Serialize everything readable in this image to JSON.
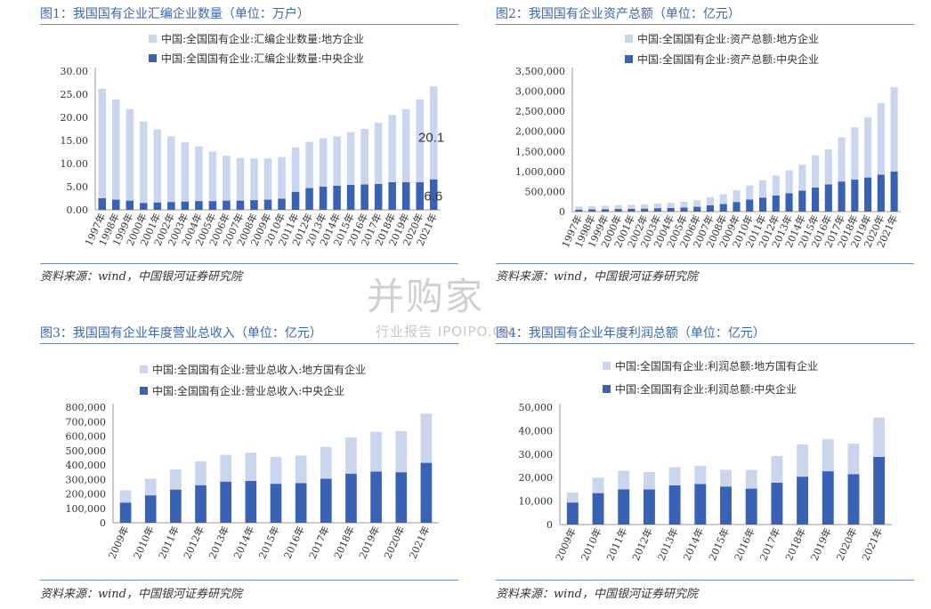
{
  "colors": {
    "local": "#c9d6ee",
    "central": "#3a62b4",
    "title": "#3b66b0",
    "rule": "#6f8cc3"
  },
  "watermark": {
    "main": "并购家",
    "sub": "行业报告 IPOIPO.CN"
  },
  "chart_data": [
    {
      "type": "bar",
      "stacked": true,
      "title": "图1：我国国有企业汇编企业数量（单位：万户）",
      "source": "资料来源：wind，中国银河证券研究院",
      "categories": [
        "1997年",
        "1998年",
        "1999年",
        "2000年",
        "2001年",
        "2002年",
        "2003年",
        "2004年",
        "2005年",
        "2006年",
        "2007年",
        "2008年",
        "2009年",
        "2010年",
        "2011年",
        "2012年",
        "2013年",
        "2014年",
        "2015年",
        "2016年",
        "2017年",
        "2018年",
        "2019年",
        "2020年",
        "2021年"
      ],
      "series": [
        {
          "name": "中国:全国国有企业:汇编企业数量:中央企业",
          "values": [
            2.5,
            2.2,
            2.0,
            1.5,
            1.6,
            1.7,
            1.8,
            1.9,
            1.9,
            2.0,
            2.0,
            2.1,
            2.2,
            2.4,
            3.9,
            4.7,
            5.0,
            5.2,
            5.4,
            5.5,
            5.6,
            6.0,
            6.0,
            6.0,
            6.6
          ]
        },
        {
          "name": "中国:全国国有企业:汇编企业数量:地方企业",
          "values": [
            23.7,
            21.7,
            19.8,
            17.6,
            15.8,
            14.2,
            12.8,
            11.8,
            10.7,
            9.7,
            9.2,
            9.0,
            8.9,
            9.0,
            9.6,
            10.0,
            10.5,
            10.7,
            11.4,
            12.0,
            13.2,
            14.5,
            15.8,
            17.9,
            20.1
          ]
        }
      ],
      "ylim": [
        0,
        30
      ],
      "yticks": [
        "0.00",
        "5.00",
        "10.00",
        "15.00",
        "20.00",
        "25.00",
        "30.00"
      ],
      "annotations": [
        "20.1",
        "6.6"
      ],
      "legend": "top"
    },
    {
      "type": "bar",
      "stacked": true,
      "title": "图2：我国国有企业资产总额（单位：亿元）",
      "source": "资料来源：wind，中国银河证券研究院",
      "categories": [
        "1997年",
        "1998年",
        "1999年",
        "2000年",
        "2001年",
        "2002年",
        "2003年",
        "2004年",
        "2005年",
        "2006年",
        "2007年",
        "2008年",
        "2009年",
        "2010年",
        "2011年",
        "2012年",
        "2013年",
        "2014年",
        "2015年",
        "2016年",
        "2017年",
        "2018年",
        "2019年",
        "2020年",
        "2021年"
      ],
      "series": [
        {
          "name": "中国:全国国有企业:资产总额:中央企业",
          "values": [
            50000,
            55000,
            60000,
            65000,
            70000,
            75000,
            85000,
            90000,
            100000,
            120000,
            160000,
            190000,
            240000,
            300000,
            350000,
            400000,
            460000,
            520000,
            600000,
            680000,
            750000,
            800000,
            850000,
            920000,
            1000000
          ]
        },
        {
          "name": "中国:全国国有企业:资产总额:地方企业",
          "values": [
            75000,
            80000,
            85000,
            95000,
            100000,
            105000,
            115000,
            130000,
            145000,
            165000,
            200000,
            240000,
            290000,
            350000,
            430000,
            500000,
            570000,
            650000,
            800000,
            870000,
            1100000,
            1300000,
            1500000,
            1780000,
            2100000
          ]
        }
      ],
      "ylim": [
        0,
        3500000
      ],
      "yticks": [
        "0",
        "500,000",
        "1,000,000",
        "1,500,000",
        "2,000,000",
        "2,500,000",
        "3,000,000",
        "3,500,000"
      ],
      "legend": "top"
    },
    {
      "type": "bar",
      "stacked": true,
      "title": "图3：我国国有企业年度营业总收入（单位：亿元）",
      "source": "资料来源：wind，中国银河证券研究院",
      "categories": [
        "2009年",
        "2010年",
        "2011年",
        "2012年",
        "2013年",
        "2014年",
        "2015年",
        "2016年",
        "2017年",
        "2018年",
        "2019年",
        "2020年",
        "2021年"
      ],
      "series": [
        {
          "name": "中国:全国国有企业:营业总收入:中央企业",
          "values": [
            140000,
            190000,
            230000,
            260000,
            285000,
            290000,
            270000,
            275000,
            305000,
            340000,
            355000,
            350000,
            415000
          ]
        },
        {
          "name": "中国:全国国有企业:营业总收入:地方国有企业",
          "values": [
            85000,
            115000,
            140000,
            165000,
            185000,
            195000,
            185000,
            190000,
            220000,
            250000,
            275000,
            285000,
            340000
          ]
        }
      ],
      "ylim": [
        0,
        800000
      ],
      "yticks": [
        "0",
        "100,000",
        "200,000",
        "300,000",
        "400,000",
        "500,000",
        "600,000",
        "700,000",
        "800,000"
      ],
      "legend": "top"
    },
    {
      "type": "bar",
      "stacked": true,
      "title": "图4：我国国有企业年度利润总额（单位：亿元）",
      "source": "资料来源：wind，中国银河证券研究院",
      "categories": [
        "2009年",
        "2010年",
        "2011年",
        "2012年",
        "2013年",
        "2014年",
        "2015年",
        "2016年",
        "2017年",
        "2018年",
        "2019年",
        "2020年",
        "2021年"
      ],
      "series": [
        {
          "name": "中国:全国国有企业:利润总额:中央企业",
          "values": [
            9400,
            13400,
            15000,
            15000,
            16700,
            17300,
            16200,
            15300,
            17800,
            20400,
            22700,
            21500,
            28800
          ]
        },
        {
          "name": "中国:全国国有企业:利润总额:地方国有企业",
          "values": [
            4200,
            6600,
            7900,
            7400,
            7700,
            7700,
            7100,
            8000,
            11400,
            13800,
            13600,
            13000,
            16800
          ]
        }
      ],
      "ylim": [
        0,
        50000
      ],
      "yticks": [
        "0",
        "10,000",
        "20,000",
        "30,000",
        "40,000",
        "50,000"
      ],
      "legend": "top"
    }
  ]
}
